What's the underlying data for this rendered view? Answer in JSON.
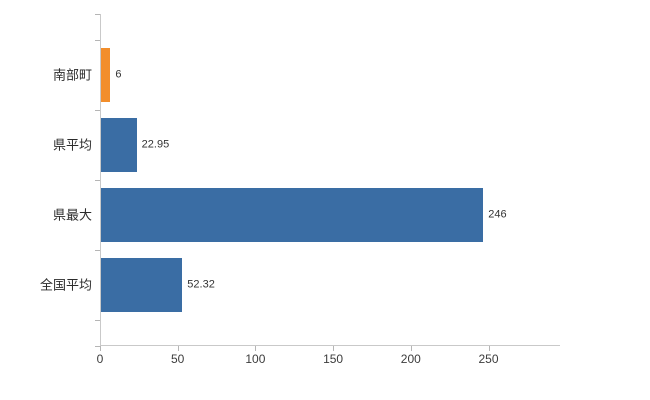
{
  "chart_data": {
    "type": "bar",
    "orientation": "horizontal",
    "title": "",
    "xlabel": "",
    "ylabel": "",
    "categories": [
      "南部町",
      "県平均",
      "県最大",
      "全国平均"
    ],
    "values": [
      6,
      22.95,
      246,
      52.32
    ],
    "value_labels": [
      "6",
      "22.95",
      "246",
      "52.32"
    ],
    "bar_colors": [
      "#f28e2b",
      "#3a6da4",
      "#3a6da4",
      "#3a6da4"
    ],
    "xlim": [
      0,
      296
    ],
    "x_ticks": [
      0,
      50,
      100,
      150,
      200,
      250
    ],
    "grid": false,
    "legend": "none"
  },
  "colors": {
    "bar_blue": "#3a6da4",
    "bar_orange": "#f28e2b",
    "axis": "#c9c9c9",
    "tick_mark": "#b5b5b5",
    "category_text": "#2b2b2b",
    "tick_text": "#3c3c3c",
    "value_text": "#333333",
    "background": "#ffffff"
  }
}
